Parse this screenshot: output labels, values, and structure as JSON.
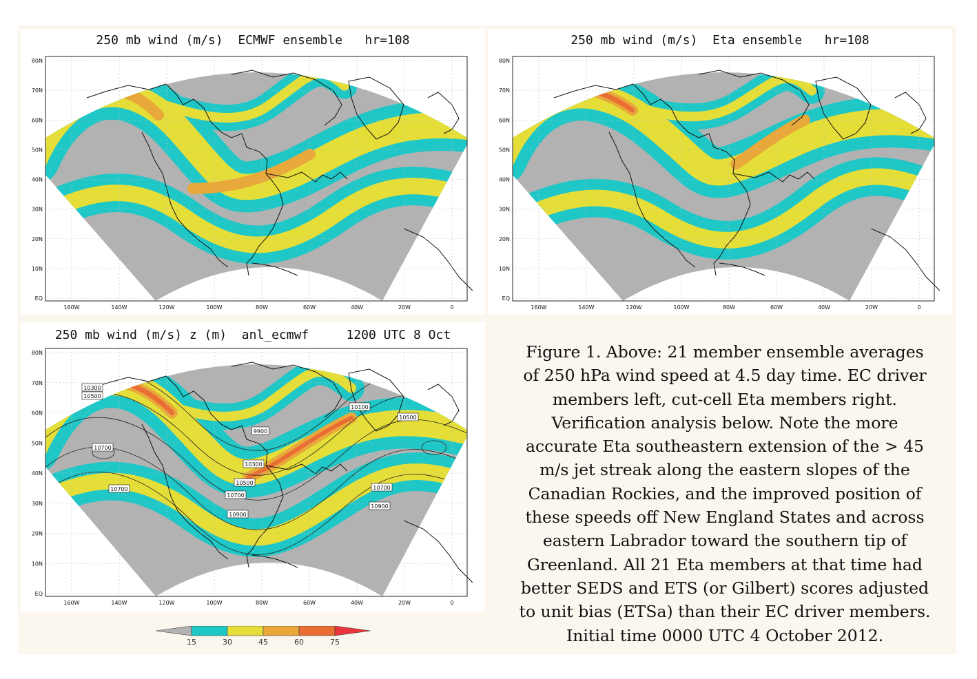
{
  "panels": {
    "ecmwf": {
      "title": "250 mb wind (m/s)  ECMWF ensemble   hr=108"
    },
    "eta": {
      "title": "250 mb wind (m/s)  Eta ensemble   hr=108"
    },
    "analysis": {
      "title": "250 mb wind (m/s) z (m)  anl_ecmwf     1200 UTC 8 Oct",
      "contour_labels": [
        "10300",
        "10500",
        "10100",
        "10500",
        "9900",
        "10700",
        "10300",
        "10500",
        "10700",
        "10700",
        "10700",
        "10900",
        "10900"
      ]
    }
  },
  "axes": {
    "lat_labels": [
      "80N",
      "70N",
      "60N",
      "50N",
      "40N",
      "30N",
      "20N",
      "10N",
      "EQ"
    ],
    "lon_labels": [
      "160W",
      "140W",
      "120W",
      "100W",
      "80W",
      "60W",
      "40W",
      "20W",
      "0"
    ]
  },
  "colorbar": {
    "ticks": [
      "15",
      "30",
      "45",
      "60",
      "75"
    ],
    "colors": [
      "#b2b2b2",
      "#1fc7c7",
      "#e6de38",
      "#e9a93a",
      "#ea6d33",
      "#e8343a"
    ]
  },
  "caption": {
    "lines": [
      "Figure 1. Above: 21 member ensemble averages",
      "of 250 hPa wind speed at 4.5 day time. EC driver",
      "members left, cut-cell Eta members right.",
      "Verification analysis below. Note the more",
      "accurate Eta southeastern extension of the > 45",
      "m/s jet streak along the eastern slopes of the",
      "Canadian Rockies, and the improved position of",
      "these speeds off New England States and across",
      "eastern Labrador toward the southern tip of",
      "Greenland. All 21 Eta members at that time had",
      "better SEDS and ETS (or Gilbert) scores adjusted",
      "to unit bias (ETSa) than their EC driver members.",
      "Initial time 0000 UTC 4 October 2012."
    ]
  }
}
